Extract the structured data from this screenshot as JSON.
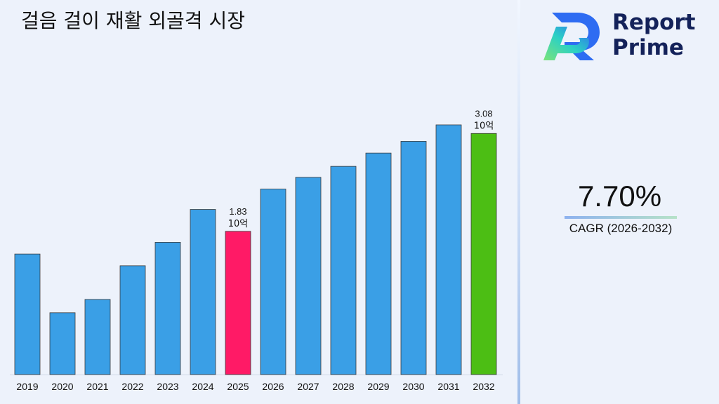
{
  "chart_data": {
    "type": "bar",
    "title": "걸음 걸이 재활 외골격 시장",
    "categories": [
      "2019",
      "2020",
      "2021",
      "2022",
      "2023",
      "2024",
      "2025",
      "2026",
      "2027",
      "2028",
      "2029",
      "2030",
      "2031",
      "2032"
    ],
    "values": [
      1.54,
      0.79,
      0.96,
      1.39,
      1.69,
      2.11,
      1.83,
      2.37,
      2.52,
      2.66,
      2.83,
      2.98,
      3.19,
      3.08
    ],
    "highlight": {
      "2025": {
        "color": "#ff1a66",
        "label_value": "1.83",
        "label_unit": "10억"
      },
      "2032": {
        "color": "#4cbe14",
        "label_value": "3.08",
        "label_unit": "10억"
      }
    },
    "bar_color": "#3a9fe6",
    "xlabel": "",
    "ylabel": "",
    "grid": false,
    "legend": "none"
  },
  "brand": {
    "line1": "Report",
    "line2": "Prime",
    "colors": [
      "#2e6cf2",
      "#2bd1c4",
      "#7be37a"
    ]
  },
  "cagr": {
    "value": "7.70%",
    "label": "CAGR (2026-2032)"
  }
}
